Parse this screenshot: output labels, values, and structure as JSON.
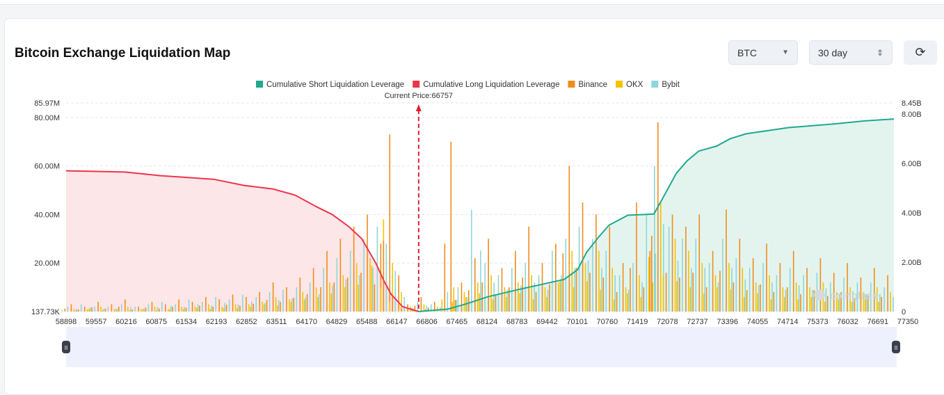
{
  "header": {
    "title": "Bitcoin Exchange Liquidation Map",
    "coin": "BTC",
    "period": "30 day"
  },
  "colors": {
    "short": "#1ea88e",
    "long": "#f0334b",
    "binance": "#f08c1a",
    "okx": "#f5c200",
    "bybit": "#8fd6d8"
  },
  "watermark": "coinglass",
  "chart_data": {
    "type": "bar",
    "title": "Bitcoin Exchange Liquidation Map",
    "annotation": "Current Price:66757",
    "current_price": 66757,
    "legend": [
      "Cumulative Short Liquidation Leverage",
      "Cumulative Long Liquidation Leverage",
      "Binance",
      "OKX",
      "Bybit"
    ],
    "legend_position": "top-center",
    "x_ticks": [
      "58898",
      "59557",
      "60216",
      "60875",
      "61534",
      "62193",
      "62852",
      "63511",
      "64170",
      "64829",
      "65488",
      "66147",
      "66806",
      "67465",
      "68124",
      "68783",
      "69442",
      "70101",
      "70760",
      "71419",
      "72078",
      "72737",
      "73396",
      "74055",
      "74714",
      "75373",
      "76032",
      "76691",
      "77350"
    ],
    "xlim": [
      58898,
      77350
    ],
    "y_left_ticks": [
      "137.73K",
      "20.00M",
      "40.00M",
      "60.00M",
      "80.00M",
      "85.97M"
    ],
    "y_left_values": [
      0.13773,
      20,
      40,
      60,
      80,
      85.97
    ],
    "ylim_left": [
      0.13773,
      85.97
    ],
    "y_right_ticks": [
      "0",
      "2.00B",
      "4.00B",
      "6.00B",
      "8.00B",
      "8.45B"
    ],
    "y_right_values": [
      0,
      2,
      4,
      6,
      8,
      8.45
    ],
    "ylim_right": [
      0,
      8.45
    ],
    "long_cumulative_M": [
      [
        58898,
        58
      ],
      [
        60216,
        57.5
      ],
      [
        61000,
        56
      ],
      [
        62193,
        54.5
      ],
      [
        62852,
        52
      ],
      [
        63511,
        50.5
      ],
      [
        64000,
        48
      ],
      [
        64500,
        43
      ],
      [
        64829,
        40
      ],
      [
        65200,
        35
      ],
      [
        65488,
        30
      ],
      [
        65800,
        20
      ],
      [
        66000,
        12
      ],
      [
        66147,
        7
      ],
      [
        66400,
        2
      ],
      [
        66757,
        0
      ]
    ],
    "short_cumulative_B": [
      [
        66757,
        0
      ],
      [
        67400,
        0.1
      ],
      [
        67800,
        0.3
      ],
      [
        68300,
        0.6
      ],
      [
        69000,
        0.9
      ],
      [
        69500,
        1.1
      ],
      [
        70000,
        1.3
      ],
      [
        70300,
        1.7
      ],
      [
        70500,
        2.4
      ],
      [
        70760,
        3.0
      ],
      [
        71000,
        3.5
      ],
      [
        71419,
        3.9
      ],
      [
        72000,
        3.95
      ],
      [
        72200,
        4.6
      ],
      [
        72500,
        5.6
      ],
      [
        72737,
        6.1
      ],
      [
        73000,
        6.5
      ],
      [
        73396,
        6.7
      ],
      [
        73700,
        7.0
      ],
      [
        74055,
        7.2
      ],
      [
        75000,
        7.45
      ],
      [
        76032,
        7.6
      ],
      [
        76691,
        7.72
      ],
      [
        77350,
        7.8
      ]
    ],
    "bars_M": [
      [
        59000,
        3,
        1,
        2
      ],
      [
        59300,
        2,
        1,
        3
      ],
      [
        59600,
        4,
        2,
        2
      ],
      [
        59900,
        3,
        1,
        2
      ],
      [
        60200,
        5,
        2,
        3
      ],
      [
        60500,
        2,
        1,
        2
      ],
      [
        60800,
        4,
        2,
        3
      ],
      [
        61100,
        3,
        1,
        4
      ],
      [
        61400,
        5,
        2,
        3
      ],
      [
        61700,
        4,
        2,
        5
      ],
      [
        62000,
        6,
        3,
        4
      ],
      [
        62300,
        5,
        2,
        6
      ],
      [
        62600,
        7,
        3,
        5
      ],
      [
        62900,
        6,
        3,
        7
      ],
      [
        63200,
        8,
        4,
        6
      ],
      [
        63500,
        12,
        6,
        8
      ],
      [
        63800,
        10,
        5,
        9
      ],
      [
        64100,
        14,
        8,
        10
      ],
      [
        64400,
        18,
        10,
        12
      ],
      [
        64700,
        25,
        12,
        18
      ],
      [
        65000,
        30,
        15,
        22
      ],
      [
        65300,
        35,
        20,
        25
      ],
      [
        65600,
        40,
        22,
        30
      ],
      [
        65900,
        28,
        38,
        35
      ],
      [
        66100,
        73,
        20,
        28
      ],
      [
        66300,
        15,
        8,
        10
      ],
      [
        66500,
        3,
        2,
        2
      ],
      [
        66800,
        6,
        3,
        4
      ],
      [
        67100,
        4,
        2,
        3
      ],
      [
        67465,
        70,
        10,
        8
      ],
      [
        67700,
        12,
        8,
        10
      ],
      [
        68000,
        22,
        12,
        42
      ],
      [
        68300,
        30,
        15,
        20
      ],
      [
        68600,
        18,
        10,
        15
      ],
      [
        68900,
        25,
        12,
        18
      ],
      [
        69200,
        35,
        15,
        20
      ],
      [
        69500,
        20,
        10,
        15
      ],
      [
        69800,
        28,
        12,
        25
      ],
      [
        70101,
        60,
        25,
        30
      ],
      [
        70400,
        45,
        20,
        35
      ],
      [
        70700,
        40,
        25,
        30
      ],
      [
        71000,
        35,
        18,
        25
      ],
      [
        71300,
        20,
        10,
        15
      ],
      [
        71600,
        45,
        15,
        20
      ],
      [
        71900,
        25,
        12,
        40
      ],
      [
        72078,
        78,
        45,
        60
      ],
      [
        72400,
        40,
        30,
        35
      ],
      [
        72700,
        35,
        25,
        30
      ],
      [
        73000,
        40,
        20,
        30
      ],
      [
        73300,
        25,
        15,
        20
      ],
      [
        73600,
        42,
        20,
        30
      ],
      [
        73900,
        30,
        18,
        22
      ],
      [
        74200,
        22,
        12,
        18
      ],
      [
        74500,
        28,
        15,
        20
      ],
      [
        74800,
        20,
        10,
        15
      ],
      [
        75100,
        25,
        12,
        18
      ],
      [
        75400,
        18,
        10,
        15
      ],
      [
        75700,
        22,
        12,
        16
      ],
      [
        76000,
        16,
        8,
        12
      ],
      [
        76300,
        20,
        10,
        14
      ],
      [
        76600,
        14,
        8,
        12
      ],
      [
        76900,
        18,
        10,
        12
      ],
      [
        77200,
        15,
        8,
        10
      ]
    ]
  }
}
